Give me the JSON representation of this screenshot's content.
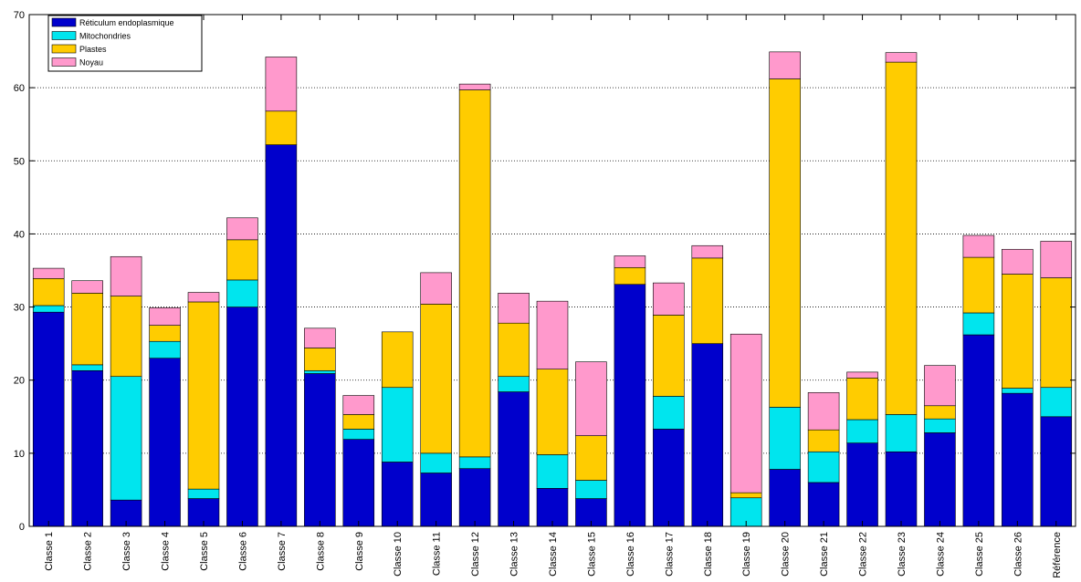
{
  "chart_data": {
    "type": "bar",
    "stacked": true,
    "title": "",
    "xlabel": "",
    "ylabel": "",
    "ylim": [
      0,
      70
    ],
    "yticks": [
      0,
      10,
      20,
      30,
      40,
      50,
      60,
      70
    ],
    "grid": true,
    "legend_position": "top-left",
    "categories": [
      "Classe 1",
      "Classe 2",
      "Classe 3",
      "Classe 4",
      "Classe 5",
      "Classe 6",
      "Classe 7",
      "Classe 8",
      "Classe 9",
      "Classe 10",
      "Classe 11",
      "Classe 12",
      "Classe 13",
      "Classe 14",
      "Classe 15",
      "Classe 16",
      "Classe 17",
      "Classe 18",
      "Classe 19",
      "Classe 20",
      "Classe 21",
      "Classe 22",
      "Classe 23",
      "Classe 24",
      "Classe 25",
      "Classe 26",
      "Référence"
    ],
    "series": [
      {
        "name": "Réticulum endoplasmique",
        "color": "#0000cc",
        "values": [
          29.3,
          21.3,
          3.6,
          23.0,
          3.8,
          30.0,
          52.2,
          20.9,
          11.9,
          8.8,
          7.3,
          7.9,
          18.4,
          5.2,
          3.8,
          33.1,
          13.3,
          25.0,
          0,
          7.8,
          6.0,
          11.4,
          10.2,
          12.8,
          26.2,
          18.2,
          15.0
        ]
      },
      {
        "name": "Mitochondries",
        "color": "#00e5ee",
        "values": [
          0.9,
          0.8,
          16.9,
          2.3,
          1.3,
          3.7,
          0,
          0.4,
          1.4,
          10.2,
          2.7,
          1.6,
          2.1,
          4.6,
          2.5,
          0,
          4.5,
          0,
          3.9,
          8.5,
          4.2,
          3.2,
          5.1,
          1.9,
          3.0,
          0.7,
          4.0
        ]
      },
      {
        "name": "Plastes",
        "color": "#ffcc00",
        "values": [
          3.7,
          9.8,
          11.0,
          2.2,
          25.6,
          5.5,
          4.6,
          3.1,
          2.0,
          7.6,
          20.4,
          50.2,
          7.3,
          11.7,
          6.1,
          2.3,
          11.1,
          11.7,
          0.7,
          44.9,
          3.0,
          5.7,
          48.2,
          1.8,
          7.6,
          15.6,
          15.0
        ]
      },
      {
        "name": "Noyau",
        "color": "#ff99cc",
        "values": [
          1.4,
          1.7,
          5.4,
          2.4,
          1.3,
          3.0,
          7.4,
          2.7,
          2.6,
          0,
          4.3,
          0.8,
          4.1,
          9.3,
          10.1,
          1.6,
          4.4,
          1.7,
          21.7,
          3.7,
          5.1,
          0.8,
          1.3,
          5.5,
          3.0,
          3.4,
          5.0
        ]
      }
    ]
  }
}
